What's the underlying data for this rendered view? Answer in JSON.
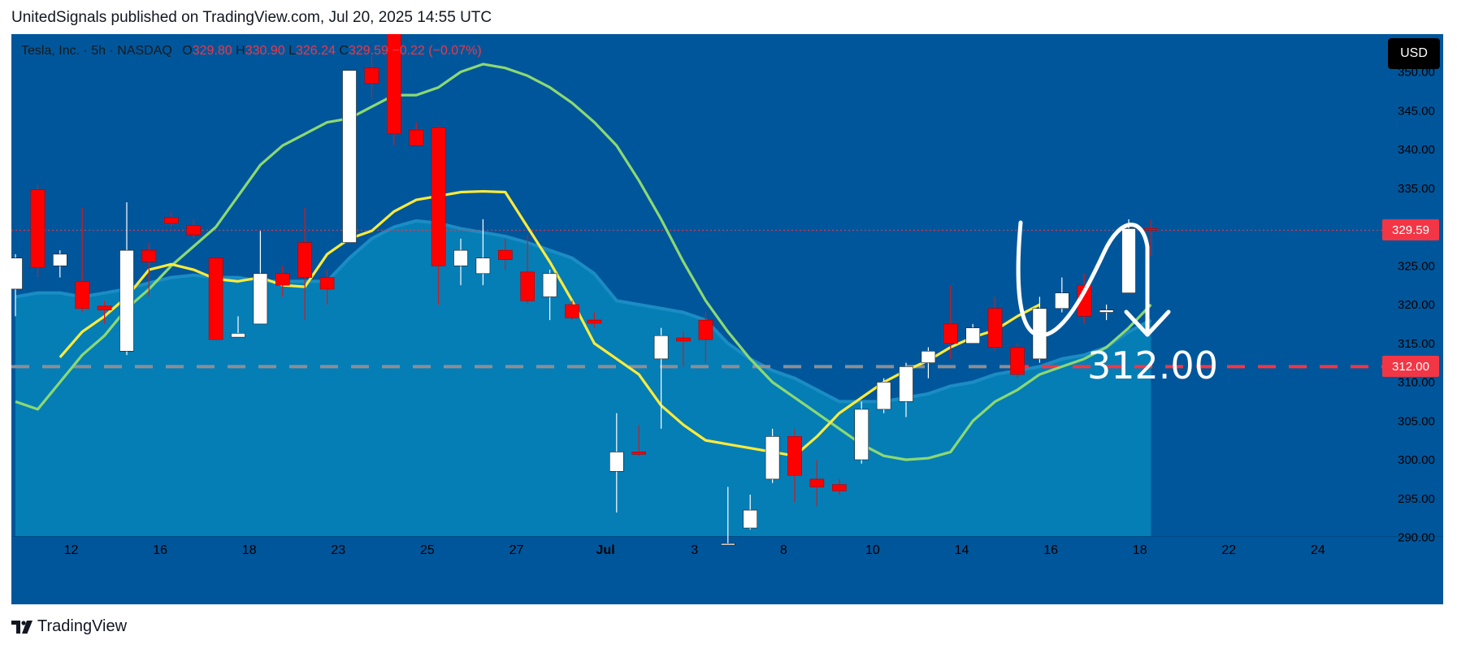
{
  "header": {
    "publisher_line": "UnitedSignals published on TradingView.com, Jul 20, 2025 14:55 UTC"
  },
  "legend": {
    "symbol": "Tesla, Inc. · 5h · NASDAQ",
    "open_label": "O",
    "open": "329.80",
    "high_label": "H",
    "high": "330.90",
    "low_label": "L",
    "low": "326.24",
    "close_label": "C",
    "close": "329.59",
    "change": "−0.22 (−0.07%)"
  },
  "currency_button": "USD",
  "price_tags": {
    "last": "329.59",
    "target": "312.00"
  },
  "annotation_text": "312.00",
  "footer": {
    "logo_text": "TradingView"
  },
  "colors": {
    "background": "#00569b",
    "area_fill": "#0581b7",
    "up_candle": "#ffffff",
    "down_candle": "#ff0000",
    "fast_ma": "#fdeb3b",
    "slow_ma": "#8cd972",
    "target_line": "#f23645",
    "last_price": "#f23645"
  },
  "chart_data": {
    "type": "candlestick",
    "symbol": "Tesla, Inc.",
    "interval": "5h",
    "exchange": "NASDAQ",
    "currency": "USD",
    "ylim": [
      288,
      356
    ],
    "y_ticks": [
      "350.00",
      "345.00",
      "340.00",
      "335.00",
      "330.00",
      "325.00",
      "320.00",
      "315.00",
      "310.00",
      "305.00",
      "300.00",
      "295.00",
      "290.00"
    ],
    "x_ticks": [
      {
        "label": "12",
        "i": 2.5
      },
      {
        "label": "16",
        "i": 6.5
      },
      {
        "label": "18",
        "i": 10.5
      },
      {
        "label": "23",
        "i": 14.5
      },
      {
        "label": "25",
        "i": 18.5
      },
      {
        "label": "27",
        "i": 22.5
      },
      {
        "label": "Jul",
        "i": 26.5
      },
      {
        "label": "3",
        "i": 30.5
      },
      {
        "label": "8",
        "i": 34.5
      },
      {
        "label": "10",
        "i": 38.5
      },
      {
        "label": "14",
        "i": 42.5
      },
      {
        "label": "16",
        "i": 46.5
      },
      {
        "label": "18",
        "i": 50.5
      },
      {
        "label": "22",
        "i": 54.5
      },
      {
        "label": "24",
        "i": 58.5
      }
    ],
    "candles": [
      {
        "o": 322.0,
        "h": 326.5,
        "l": 318.5,
        "c": 326.0
      },
      {
        "o": 334.8,
        "h": 335.5,
        "l": 323.5,
        "c": 324.8
      },
      {
        "o": 325.0,
        "h": 327.0,
        "l": 323.5,
        "c": 326.5
      },
      {
        "o": 323.0,
        "h": 332.5,
        "l": 319.0,
        "c": 319.5
      },
      {
        "o": 319.8,
        "h": 320.5,
        "l": 317.5,
        "c": 319.3
      },
      {
        "o": 314.0,
        "h": 333.2,
        "l": 313.5,
        "c": 327.0
      },
      {
        "o": 327.0,
        "h": 328.0,
        "l": 321.0,
        "c": 325.5
      },
      {
        "o": 331.2,
        "h": 332.0,
        "l": 330.0,
        "c": 330.5
      },
      {
        "o": 330.2,
        "h": 331.0,
        "l": 328.5,
        "c": 329.0
      },
      {
        "o": 326.0,
        "h": 326.0,
        "l": 315.5,
        "c": 315.5
      },
      {
        "o": 315.8,
        "h": 318.5,
        "l": 315.8,
        "c": 316.3
      },
      {
        "o": 317.5,
        "h": 329.5,
        "l": 317.5,
        "c": 324.0
      },
      {
        "o": 324.0,
        "h": 325.0,
        "l": 321.0,
        "c": 322.5
      },
      {
        "o": 328.0,
        "h": 332.5,
        "l": 318.0,
        "c": 323.5
      },
      {
        "o": 323.5,
        "h": 324.5,
        "l": 320.0,
        "c": 322.0
      },
      {
        "o": 328.0,
        "h": 350.0,
        "l": 328.0,
        "c": 350.2
      },
      {
        "o": 350.5,
        "h": 352.0,
        "l": 346.5,
        "c": 348.5
      },
      {
        "o": 355.0,
        "h": 356.0,
        "l": 340.5,
        "c": 342.0
      },
      {
        "o": 342.5,
        "h": 343.5,
        "l": 340.5,
        "c": 340.5
      },
      {
        "o": 342.8,
        "h": 343.0,
        "l": 320.0,
        "c": 325.0
      },
      {
        "o": 325.0,
        "h": 328.5,
        "l": 322.5,
        "c": 327.0
      },
      {
        "o": 324.0,
        "h": 331.0,
        "l": 322.5,
        "c": 326.0
      },
      {
        "o": 327.0,
        "h": 328.5,
        "l": 324.5,
        "c": 325.8
      },
      {
        "o": 324.2,
        "h": 329.0,
        "l": 320.0,
        "c": 320.5
      },
      {
        "o": 321.0,
        "h": 324.5,
        "l": 318.0,
        "c": 324.0
      },
      {
        "o": 320.0,
        "h": 320.5,
        "l": 318.0,
        "c": 318.3
      },
      {
        "o": 318.0,
        "h": 319.0,
        "l": 317.0,
        "c": 317.6
      },
      {
        "o": 298.5,
        "h": 306.0,
        "l": 293.2,
        "c": 301.0
      },
      {
        "o": 301.0,
        "h": 304.5,
        "l": 300.5,
        "c": 300.7
      },
      {
        "o": 313.0,
        "h": 317.0,
        "l": 304.0,
        "c": 316.0
      },
      {
        "o": 315.7,
        "h": 316.5,
        "l": 312.0,
        "c": 315.3
      },
      {
        "o": 318.0,
        "h": 319.0,
        "l": 312.5,
        "c": 315.5
      },
      {
        "o": 289.0,
        "h": 296.5,
        "l": 289.0,
        "c": 289.2
      },
      {
        "o": 291.2,
        "h": 295.5,
        "l": 291.0,
        "c": 293.5
      },
      {
        "o": 297.5,
        "h": 304.0,
        "l": 297.0,
        "c": 303.0
      },
      {
        "o": 303.0,
        "h": 304.0,
        "l": 294.5,
        "c": 298.0
      },
      {
        "o": 297.5,
        "h": 300.0,
        "l": 294.0,
        "c": 296.5
      },
      {
        "o": 296.8,
        "h": 297.5,
        "l": 295.5,
        "c": 296.0
      },
      {
        "o": 300.0,
        "h": 307.5,
        "l": 299.5,
        "c": 306.5
      },
      {
        "o": 306.5,
        "h": 310.5,
        "l": 306.0,
        "c": 310.0
      },
      {
        "o": 307.5,
        "h": 312.5,
        "l": 305.5,
        "c": 312.0
      },
      {
        "o": 312.5,
        "h": 314.5,
        "l": 310.5,
        "c": 314.0
      },
      {
        "o": 317.5,
        "h": 322.5,
        "l": 313.0,
        "c": 315.0
      },
      {
        "o": 315.0,
        "h": 317.5,
        "l": 315.0,
        "c": 317.0
      },
      {
        "o": 319.5,
        "h": 321.0,
        "l": 314.0,
        "c": 314.5
      },
      {
        "o": 314.5,
        "h": 315.0,
        "l": 310.5,
        "c": 311.0
      },
      {
        "o": 313.0,
        "h": 321.0,
        "l": 312.5,
        "c": 319.5
      },
      {
        "o": 319.5,
        "h": 323.5,
        "l": 319.0,
        "c": 321.5
      },
      {
        "o": 322.5,
        "h": 324.0,
        "l": 317.5,
        "c": 318.5
      },
      {
        "o": 319.0,
        "h": 320.0,
        "l": 318.0,
        "c": 319.3
      },
      {
        "o": 321.5,
        "h": 331.0,
        "l": 321.5,
        "c": 329.8
      },
      {
        "o": 329.8,
        "h": 330.9,
        "l": 326.24,
        "c": 329.59
      }
    ],
    "ma_fast": {
      "from_index": 2,
      "values": [
        313.2,
        316.5,
        318.5,
        321.0,
        324.5,
        325.2,
        324.5,
        323.3,
        323.0,
        323.5,
        322.5,
        322.3,
        326.5,
        328.5,
        329.5,
        332.0,
        333.5,
        334.0,
        334.5,
        334.6,
        334.5,
        330.0,
        325.5,
        320.5,
        315.0,
        313.0,
        311.0,
        307.0,
        304.5,
        302.5,
        302.0,
        301.5,
        301.0,
        300.5,
        303.0,
        306.0,
        308.0,
        310.0,
        311.5,
        312.8,
        314.5,
        315.8,
        316.7,
        318.5,
        320.0
      ]
    },
    "ma_slow": {
      "from_index": 0,
      "values": [
        307.5,
        306.5,
        310.0,
        313.5,
        316.0,
        319.5,
        322.0,
        325.0,
        327.5,
        330.0,
        334.0,
        338.0,
        340.5,
        342.0,
        343.5,
        344.0,
        345.5,
        347.0,
        347.0,
        348.0,
        350.0,
        351.0,
        350.5,
        349.5,
        348.0,
        346.0,
        343.5,
        340.5,
        336.0,
        331.0,
        325.5,
        320.5,
        316.5,
        313.0,
        310.0,
        308.0,
        306.0,
        304.0,
        302.0,
        300.5,
        300.0,
        300.2,
        301.0,
        305.0,
        307.5,
        309.0,
        311.0,
        312.0,
        313.0,
        314.5,
        317.0,
        320.0
      ]
    },
    "area_band": {
      "values": [
        321.0,
        321.5,
        321.5,
        321.0,
        321.5,
        322.0,
        322.8,
        323.5,
        323.8,
        323.5,
        323.5,
        323.0,
        323.0,
        323.0,
        323.0,
        326.0,
        328.5,
        330.0,
        330.8,
        330.5,
        329.8,
        329.3,
        328.8,
        328.0,
        327.0,
        326.0,
        324.0,
        320.5,
        320.0,
        319.5,
        319.0,
        318.0,
        315.0,
        313.0,
        311.5,
        310.5,
        309.0,
        307.5,
        307.5,
        307.5,
        308.0,
        308.5,
        309.5,
        310.0,
        311.0,
        311.5,
        312.0,
        313.0,
        313.5,
        314.5,
        316.5,
        318.0
      ]
    },
    "last_price": 329.59,
    "target_level": 312.0,
    "annotation": {
      "text": "312.00",
      "type": "projected path down to target"
    }
  }
}
